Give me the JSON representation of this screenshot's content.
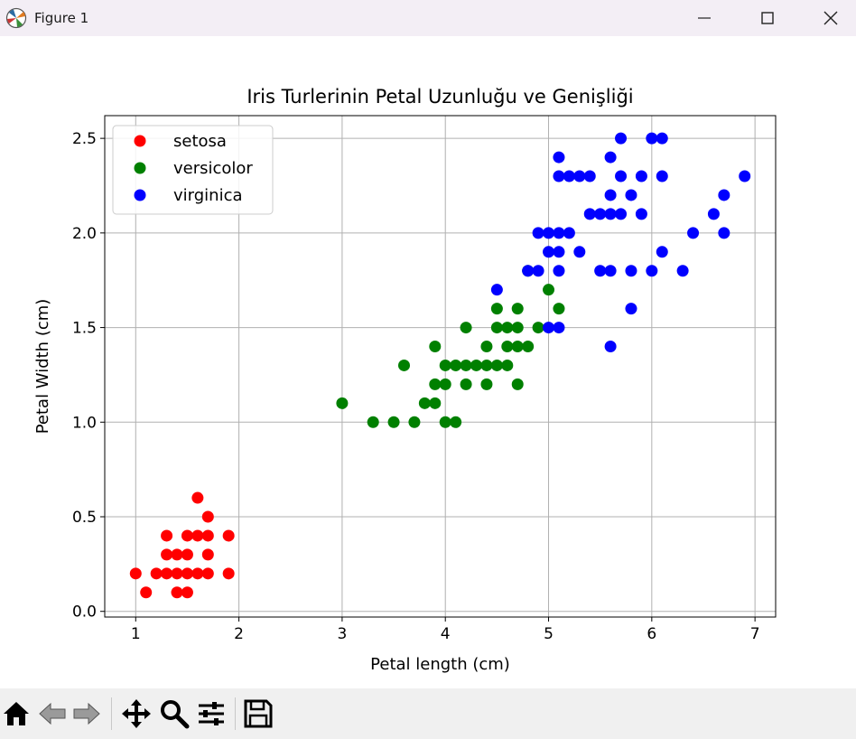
{
  "window": {
    "title": "Figure 1",
    "minimize_icon": "minimize-icon",
    "maximize_icon": "maximize-icon",
    "close_icon": "close-icon"
  },
  "toolbar": {
    "items": [
      "home-icon",
      "back-arrow-icon",
      "forward-arrow-icon",
      "pan-icon",
      "zoom-icon",
      "configure-subplots-icon",
      "save-icon"
    ]
  },
  "colors": {
    "setosa": "#ff0000",
    "versicolor": "#008000",
    "virginica": "#0000ff",
    "grid": "#b0b0b0",
    "titlebar": "#f3eef5",
    "toolbar": "#f0f0f0"
  },
  "chart_data": {
    "type": "scatter",
    "title": "Iris Turlerinin Petal Uzunluğu ve Genişliği",
    "xlabel": "Petal length (cm)",
    "ylabel": "Petal Width (cm)",
    "xlim": [
      0.7,
      7.2
    ],
    "ylim": [
      -0.03,
      2.62
    ],
    "xticks": [
      1,
      2,
      3,
      4,
      5,
      6,
      7
    ],
    "xtick_labels": [
      "1",
      "2",
      "3",
      "4",
      "5",
      "6",
      "7"
    ],
    "yticks": [
      0.0,
      0.5,
      1.0,
      1.5,
      2.0,
      2.5
    ],
    "ytick_labels": [
      "0.0",
      "0.5",
      "1.0",
      "1.5",
      "2.0",
      "2.5"
    ],
    "grid": true,
    "legend_position": "top-left",
    "series": [
      {
        "name": "setosa",
        "color": "#ff0000",
        "points": [
          [
            1.0,
            0.2
          ],
          [
            1.1,
            0.1
          ],
          [
            1.2,
            0.2
          ],
          [
            1.3,
            0.2
          ],
          [
            1.3,
            0.3
          ],
          [
            1.3,
            0.4
          ],
          [
            1.4,
            0.1
          ],
          [
            1.4,
            0.2
          ],
          [
            1.4,
            0.3
          ],
          [
            1.5,
            0.1
          ],
          [
            1.5,
            0.2
          ],
          [
            1.5,
            0.3
          ],
          [
            1.5,
            0.4
          ],
          [
            1.6,
            0.2
          ],
          [
            1.6,
            0.4
          ],
          [
            1.6,
            0.6
          ],
          [
            1.7,
            0.2
          ],
          [
            1.7,
            0.3
          ],
          [
            1.7,
            0.4
          ],
          [
            1.7,
            0.5
          ],
          [
            1.9,
            0.2
          ],
          [
            1.9,
            0.4
          ]
        ]
      },
      {
        "name": "versicolor",
        "color": "#008000",
        "points": [
          [
            3.0,
            1.1
          ],
          [
            3.3,
            1.0
          ],
          [
            3.5,
            1.0
          ],
          [
            3.6,
            1.3
          ],
          [
            3.7,
            1.0
          ],
          [
            3.8,
            1.1
          ],
          [
            3.9,
            1.1
          ],
          [
            3.9,
            1.2
          ],
          [
            3.9,
            1.4
          ],
          [
            4.0,
            1.0
          ],
          [
            4.0,
            1.2
          ],
          [
            4.0,
            1.3
          ],
          [
            4.1,
            1.0
          ],
          [
            4.1,
            1.3
          ],
          [
            4.2,
            1.2
          ],
          [
            4.2,
            1.3
          ],
          [
            4.2,
            1.5
          ],
          [
            4.3,
            1.3
          ],
          [
            4.4,
            1.2
          ],
          [
            4.4,
            1.3
          ],
          [
            4.4,
            1.4
          ],
          [
            4.5,
            1.3
          ],
          [
            4.5,
            1.5
          ],
          [
            4.5,
            1.6
          ],
          [
            4.6,
            1.3
          ],
          [
            4.6,
            1.4
          ],
          [
            4.6,
            1.5
          ],
          [
            4.7,
            1.2
          ],
          [
            4.7,
            1.4
          ],
          [
            4.7,
            1.5
          ],
          [
            4.7,
            1.6
          ],
          [
            4.8,
            1.4
          ],
          [
            4.8,
            1.8
          ],
          [
            4.9,
            1.5
          ],
          [
            5.0,
            1.7
          ],
          [
            5.1,
            1.6
          ]
        ]
      },
      {
        "name": "virginica",
        "color": "#0000ff",
        "points": [
          [
            4.5,
            1.7
          ],
          [
            4.8,
            1.8
          ],
          [
            4.9,
            1.8
          ],
          [
            4.9,
            2.0
          ],
          [
            5.0,
            1.5
          ],
          [
            5.0,
            1.9
          ],
          [
            5.0,
            2.0
          ],
          [
            5.1,
            1.5
          ],
          [
            5.1,
            1.8
          ],
          [
            5.1,
            1.9
          ],
          [
            5.1,
            2.0
          ],
          [
            5.1,
            2.3
          ],
          [
            5.1,
            2.4
          ],
          [
            5.2,
            2.0
          ],
          [
            5.2,
            2.3
          ],
          [
            5.3,
            1.9
          ],
          [
            5.3,
            2.3
          ],
          [
            5.4,
            2.1
          ],
          [
            5.4,
            2.3
          ],
          [
            5.5,
            1.8
          ],
          [
            5.5,
            2.1
          ],
          [
            5.6,
            1.4
          ],
          [
            5.6,
            1.8
          ],
          [
            5.6,
            2.1
          ],
          [
            5.6,
            2.2
          ],
          [
            5.6,
            2.4
          ],
          [
            5.7,
            2.1
          ],
          [
            5.7,
            2.3
          ],
          [
            5.7,
            2.5
          ],
          [
            5.8,
            1.6
          ],
          [
            5.8,
            1.8
          ],
          [
            5.8,
            2.2
          ],
          [
            5.9,
            2.1
          ],
          [
            5.9,
            2.3
          ],
          [
            6.0,
            1.8
          ],
          [
            6.0,
            2.5
          ],
          [
            6.1,
            1.9
          ],
          [
            6.1,
            2.3
          ],
          [
            6.1,
            2.5
          ],
          [
            6.3,
            1.8
          ],
          [
            6.4,
            2.0
          ],
          [
            6.6,
            2.1
          ],
          [
            6.7,
            2.0
          ],
          [
            6.7,
            2.2
          ],
          [
            6.9,
            2.3
          ]
        ]
      }
    ]
  }
}
